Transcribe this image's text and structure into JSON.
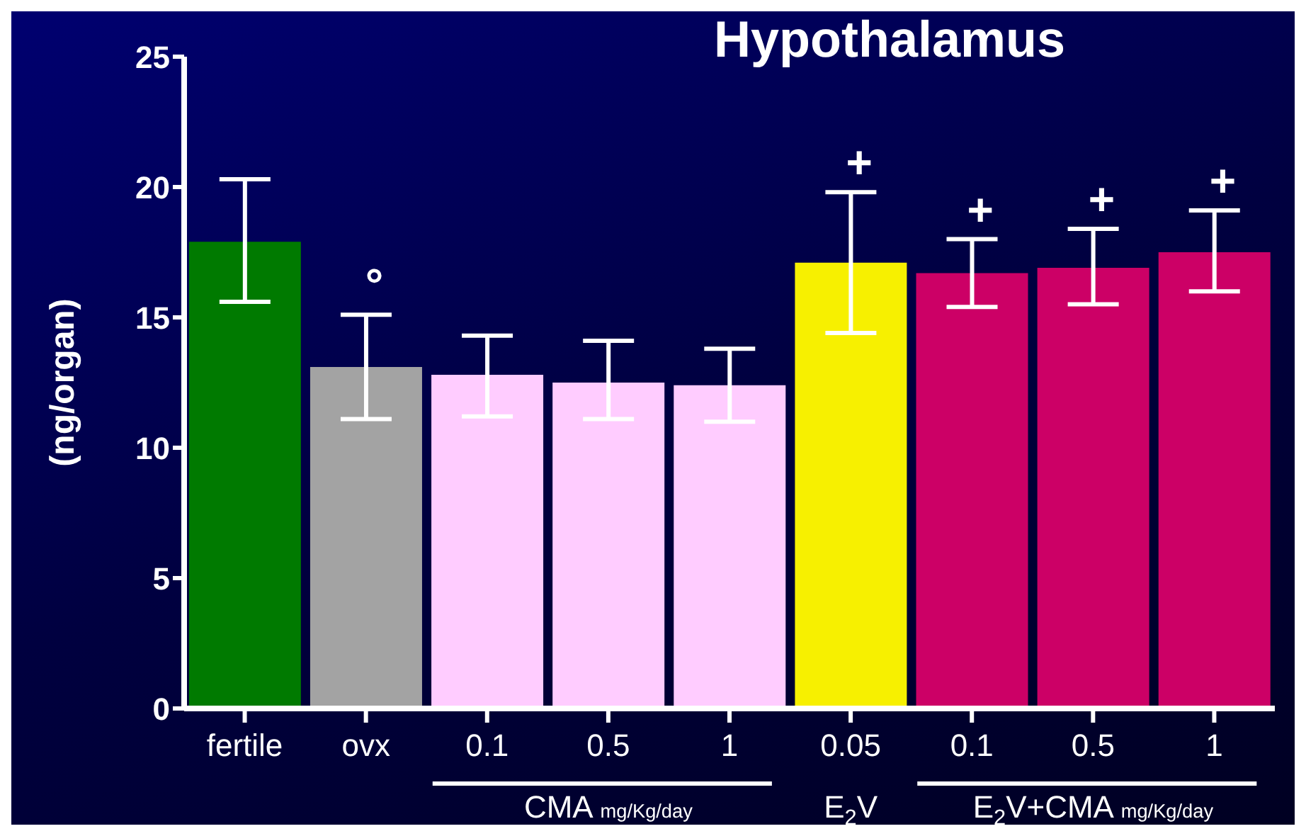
{
  "chart_data": {
    "type": "bar",
    "title": "Hypothalamus",
    "ylabel": "(ng/organ)",
    "categories": [
      "fertile",
      "ovx",
      "0.1",
      "0.5",
      "1",
      "0.05",
      "0.1",
      "0.5",
      "1"
    ],
    "values": [
      17.9,
      13.1,
      12.8,
      12.5,
      12.4,
      17.1,
      16.7,
      16.9,
      17.5
    ],
    "colors": [
      "#007a00",
      "#a3a3a3",
      "#ffccff",
      "#ffccff",
      "#ffccff",
      "#f7f000",
      "#cc0066",
      "#cc0066",
      "#cc0066"
    ],
    "errors": [
      [
        15.6,
        20.3
      ],
      [
        11.1,
        15.1
      ],
      [
        11.2,
        14.3
      ],
      [
        11.1,
        14.1
      ],
      [
        11.0,
        13.8
      ],
      [
        14.4,
        19.8
      ],
      [
        15.4,
        18.0
      ],
      [
        15.5,
        18.4
      ],
      [
        16.0,
        19.1
      ]
    ],
    "ylim": [
      0,
      25
    ],
    "yticks": [
      0,
      5,
      10,
      15,
      20,
      25
    ],
    "annotations": [
      "°",
      "+",
      "+",
      "+",
      "+",
      "CMA mg/Kg/day",
      "E$_{2}$V",
      "E$_{2}$V+CMA mg/Kg/day"
    ]
  }
}
